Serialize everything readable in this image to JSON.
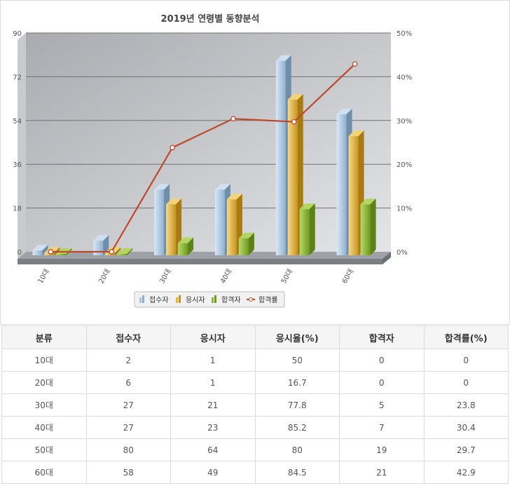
{
  "chart_data": {
    "type": "bar",
    "title": "2019년 연령별 동향분석",
    "categories": [
      "10대",
      "20대",
      "30대",
      "40대",
      "50대",
      "60대"
    ],
    "series": [
      {
        "name": "접수자",
        "values": [
          2,
          6,
          27,
          27,
          80,
          58
        ],
        "color": "#a9c4dc"
      },
      {
        "name": "응시자",
        "values": [
          1,
          1,
          21,
          23,
          64,
          49
        ],
        "color": "#e3b53a"
      },
      {
        "name": "합격자",
        "values": [
          0,
          0,
          5,
          7,
          19,
          21
        ],
        "color": "#8cb832"
      }
    ],
    "line_series": {
      "name": "합격률",
      "values": [
        0,
        0,
        23.8,
        30.4,
        29.7,
        42.9
      ],
      "color": "#c0472a",
      "axis": "right"
    },
    "ylim": [
      0,
      90
    ],
    "y_ticks": [
      "0",
      "18",
      "36",
      "54",
      "72",
      "90"
    ],
    "y2lim": [
      0,
      50
    ],
    "y2_ticks": [
      "0%",
      "10%",
      "20%",
      "30%",
      "40%",
      "50%"
    ],
    "legend": "bottom",
    "grid": true
  },
  "table": {
    "headers": [
      "분류",
      "접수자",
      "응시자",
      "응시율(%)",
      "합격자",
      "합격률(%)"
    ],
    "rows": [
      [
        "10대",
        "2",
        "1",
        "50",
        "0",
        "0"
      ],
      [
        "20대",
        "6",
        "1",
        "16.7",
        "0",
        "0"
      ],
      [
        "30대",
        "27",
        "21",
        "77.8",
        "5",
        "23.8"
      ],
      [
        "40대",
        "27",
        "23",
        "85.2",
        "7",
        "30.4"
      ],
      [
        "50대",
        "80",
        "64",
        "80",
        "19",
        "29.7"
      ],
      [
        "60대",
        "58",
        "49",
        "84.5",
        "21",
        "42.9"
      ]
    ]
  }
}
